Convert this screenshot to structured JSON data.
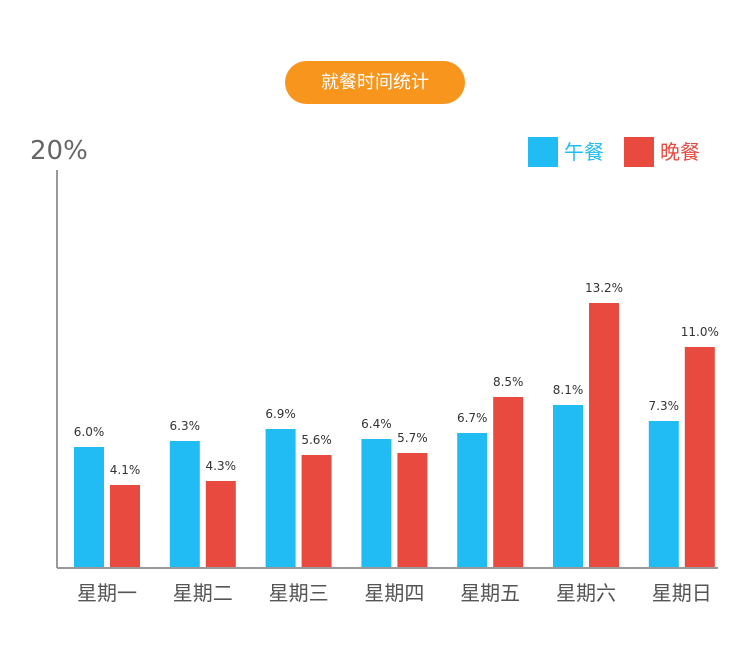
{
  "title": "就餐时间统计",
  "colors": {
    "title_bg": "#f7951d",
    "lunch": "#22bcf4",
    "dinner": "#e84a40",
    "axis": "#999999",
    "text": "#555555"
  },
  "chart_data": {
    "type": "bar",
    "title": "就餐时间统计",
    "categories": [
      "星期一",
      "星期二",
      "星期三",
      "星期四",
      "星期五",
      "星期六",
      "星期日"
    ],
    "series": [
      {
        "name": "午餐",
        "values": [
          6.0,
          6.3,
          6.9,
          6.4,
          6.7,
          8.1,
          7.3
        ],
        "labels": [
          "6.0%",
          "6.3%",
          "6.9%",
          "6.4%",
          "6.7%",
          "8.1%",
          "7.3%"
        ]
      },
      {
        "name": "晚餐",
        "values": [
          4.1,
          4.3,
          5.6,
          5.7,
          8.5,
          13.2,
          11.0
        ],
        "labels": [
          "4.1%",
          "4.3%",
          "5.6%",
          "5.7%",
          "8.5%",
          "13.2%",
          "11.0%"
        ]
      }
    ],
    "ylim": [
      0,
      20
    ],
    "ytick_label": "20%",
    "legend": "top-right",
    "grid": false
  }
}
